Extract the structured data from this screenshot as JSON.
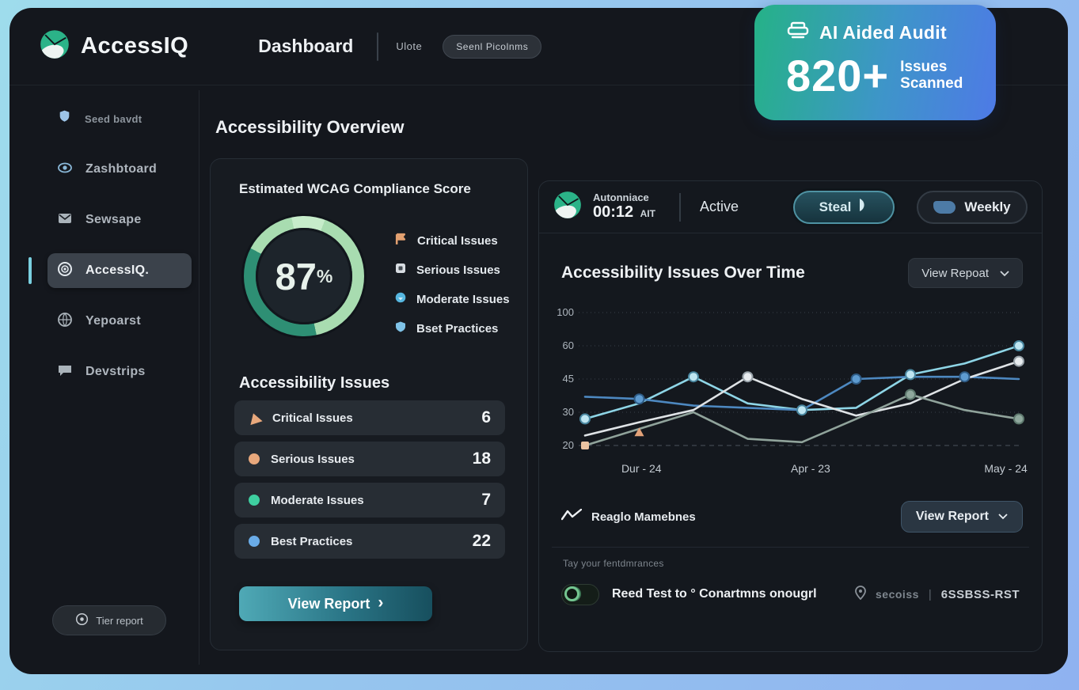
{
  "topbar": {
    "brand": "AccessIQ",
    "nav_dashboard": "Dashboard",
    "user_label": "Ulote",
    "scan_button": "Seenl Picolnms"
  },
  "audit_card": {
    "title": "AI Aided Audit",
    "count": "820+",
    "caption_top": "Issues",
    "caption_bottom": "Scanned",
    "gradient_start": "#25b287",
    "gradient_end": "#4e7ae6"
  },
  "sidebar": {
    "items": [
      {
        "label": "Seed bavdt",
        "icon": "shield-icon"
      },
      {
        "label": "Zashbtoard",
        "icon": "dashboard-icon"
      },
      {
        "label": "Sewsape",
        "icon": "messages-icon"
      },
      {
        "label": "AccessIQ.",
        "icon": "target-icon"
      },
      {
        "label": "Yepoarst",
        "icon": "reports-icon"
      },
      {
        "label": "Devstrips",
        "icon": "comments-icon"
      }
    ],
    "active_index": 3,
    "footer_button": "Tier report"
  },
  "main": {
    "page_title": "Accessibility Overview"
  },
  "wcag": {
    "title": "Estimated WCAG Compliance Score",
    "score": "87",
    "percent_sign": "%",
    "ring_colors": {
      "light_green": "#a8dcb0",
      "mint": "#c6ecca",
      "teal": "#2e8f74"
    },
    "legend": [
      {
        "label": "Critical Issues",
        "color": "#e2a070"
      },
      {
        "label": "Serious Issues",
        "color": "#d8dde2"
      },
      {
        "label": "Moderate Issues",
        "color": "#56b7e0"
      },
      {
        "label": "Bset Practices",
        "color": "#7fc3e8"
      }
    ]
  },
  "issues": {
    "title": "Accessibility Issues",
    "rows": [
      {
        "label": "Critical Issues",
        "count": "6",
        "color": "#e8a87c",
        "shape": "triangle"
      },
      {
        "label": "Serious Issues",
        "count": "18",
        "color": "#e8a87c",
        "shape": "circle"
      },
      {
        "label": "Moderate Issues",
        "count": "7",
        "color": "#3ecfa0",
        "shape": "circle"
      },
      {
        "label": "Best Practices",
        "count": "22",
        "color": "#6aace8",
        "shape": "circle"
      }
    ],
    "view_report_button": "View Report",
    "chevron": "›"
  },
  "monitor": {
    "brand_label": "Autonniace",
    "timer": "00:12",
    "timer_suffix": "AIT",
    "status": "Active",
    "primary_pill": "Steal",
    "secondary_pill": "Weekly"
  },
  "chart_header": {
    "title": "Accessibility Issues Over Time",
    "dropdown_label": "View Repoat"
  },
  "chart_footer": {
    "legend_label": "Reaglo Mamebnes",
    "view_report_button": "View Report"
  },
  "panel_footer": {
    "hint": "Tay your fentdmrances",
    "toggle_label": "Reed Test to ° Conartmns onougrl",
    "location_label": "secoiss",
    "divider": "|",
    "code_label": "6SSBSS-RST"
  },
  "chart_data": {
    "type": "line",
    "title": "Accessibility Issues Over Time",
    "xlabel": "",
    "ylabel": "",
    "yticks": [
      100,
      60,
      45,
      30,
      20
    ],
    "ylim": [
      15,
      105
    ],
    "grid": "horizontal-dashed",
    "legend_position": "none",
    "x_labels": [
      {
        "label": "Dur - 24",
        "pos": 0.13
      },
      {
        "label": "Apr - 23",
        "pos": 0.52
      },
      {
        "label": "May - 24",
        "pos": 0.97
      }
    ],
    "series": [
      {
        "name": "cyan",
        "color": "#8ed5e6",
        "marker_fill": "#bfe6f2",
        "marker_stroke": "#4a87a0",
        "values": [
          28,
          34,
          46,
          34,
          31,
          32,
          47,
          52,
          60
        ],
        "marker_indices": [
          0,
          2,
          4,
          6,
          8
        ]
      },
      {
        "name": "blue",
        "color": "#4d88c0",
        "marker_fill": "#5e9bd0",
        "marker_stroke": "#2f5c86",
        "values": [
          37,
          36,
          33,
          32,
          31,
          45,
          46,
          46,
          45
        ],
        "marker_indices": [
          1,
          5,
          7
        ]
      },
      {
        "name": "white",
        "color": "#dfe3e6",
        "marker_fill": "#e8ecef",
        "marker_stroke": "#9aa4ab",
        "values": [
          23,
          27,
          31,
          46,
          36,
          29,
          34,
          45,
          53
        ],
        "marker_indices": [
          3,
          8
        ]
      },
      {
        "name": "sage",
        "color": "#90a39b",
        "marker_fill": "#8fa89d",
        "marker_stroke": "#5f7a6f",
        "values": [
          20,
          25,
          30,
          22,
          21,
          28,
          38,
          31,
          28
        ],
        "marker_indices": [
          6,
          8
        ]
      }
    ],
    "accent_markers": [
      {
        "x": 1,
        "value": 24,
        "shape": "triangle",
        "color": "#e2a178"
      },
      {
        "x": 0,
        "value": 20,
        "shape": "square",
        "color": "#eac3a2"
      }
    ]
  }
}
